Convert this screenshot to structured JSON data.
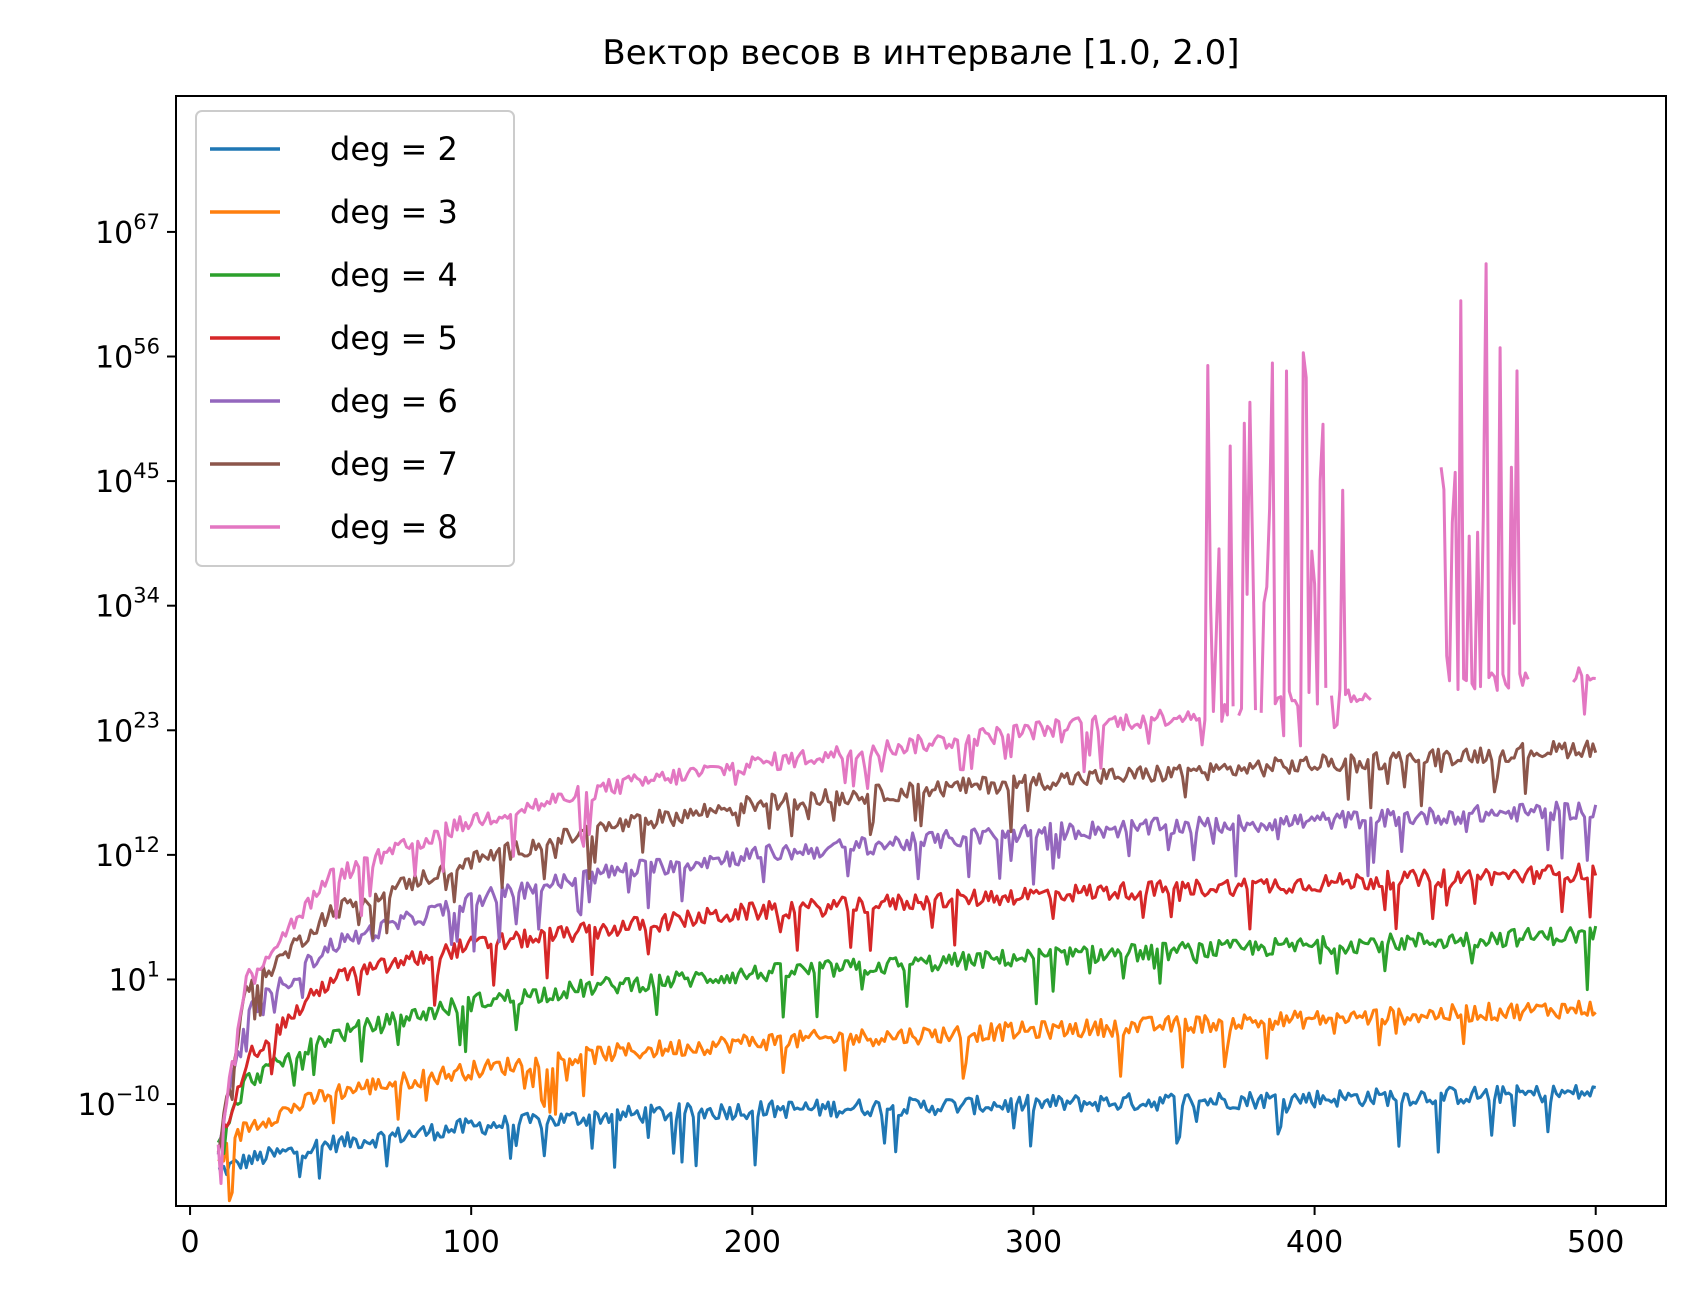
{
  "chart_data": {
    "type": "line",
    "title": "Вектор весов в интервале [1.0, 2.0]",
    "xlabel": "",
    "ylabel": "",
    "x_range": [
      10,
      500
    ],
    "xlim": [
      -5,
      525
    ],
    "ylim_log10": [
      -19,
      79
    ],
    "y_scale": "log",
    "x_ticks": [
      0,
      100,
      200,
      300,
      400,
      500
    ],
    "x_tick_labels": [
      "0",
      "100",
      "200",
      "300",
      "400",
      "500"
    ],
    "y_ticks": [
      {
        "exp": -10,
        "base": "10",
        "sup": "−10"
      },
      {
        "exp": 1,
        "base": "10",
        "sup": "1"
      },
      {
        "exp": 12,
        "base": "10",
        "sup": "12"
      },
      {
        "exp": 23,
        "base": "10",
        "sup": "23"
      },
      {
        "exp": 34,
        "base": "10",
        "sup": "34"
      },
      {
        "exp": 45,
        "base": "10",
        "sup": "45"
      },
      {
        "exp": 56,
        "base": "10",
        "sup": "56"
      },
      {
        "exp": 67,
        "base": "10",
        "sup": "67"
      }
    ],
    "legend_position": "upper left",
    "grid": false,
    "series": [
      {
        "name": "deg = 2",
        "color": "#1f77b4",
        "trend_log10": [
          [
            10,
            -16
          ],
          [
            20,
            -15
          ],
          [
            50,
            -13.5
          ],
          [
            100,
            -12
          ],
          [
            150,
            -11
          ],
          [
            200,
            -10.5
          ],
          [
            300,
            -10
          ],
          [
            400,
            -9.5
          ],
          [
            500,
            -9
          ]
        ]
      },
      {
        "name": "deg = 3",
        "color": "#ff7f0e",
        "trend_log10": [
          [
            10,
            -15
          ],
          [
            20,
            -12
          ],
          [
            50,
            -9
          ],
          [
            100,
            -7
          ],
          [
            150,
            -5.5
          ],
          [
            200,
            -4.5
          ],
          [
            300,
            -3.5
          ],
          [
            400,
            -2.5
          ],
          [
            500,
            -1.5
          ]
        ]
      },
      {
        "name": "deg = 4",
        "color": "#2ca02c",
        "trend_log10": [
          [
            10,
            -14
          ],
          [
            20,
            -8
          ],
          [
            50,
            -4
          ],
          [
            100,
            -1
          ],
          [
            150,
            0.5
          ],
          [
            200,
            1.5
          ],
          [
            300,
            3
          ],
          [
            400,
            4
          ],
          [
            500,
            5
          ]
        ]
      },
      {
        "name": "deg = 5",
        "color": "#d62728",
        "trend_log10": [
          [
            10,
            -14
          ],
          [
            20,
            -6
          ],
          [
            50,
            1
          ],
          [
            100,
            4
          ],
          [
            150,
            5.5
          ],
          [
            200,
            7
          ],
          [
            300,
            8.5
          ],
          [
            400,
            9.5
          ],
          [
            500,
            10.5
          ]
        ]
      },
      {
        "name": "deg = 6",
        "color": "#9467bd",
        "trend_log10": [
          [
            10,
            -14
          ],
          [
            20,
            -2
          ],
          [
            50,
            4
          ],
          [
            100,
            8
          ],
          [
            150,
            10.5
          ],
          [
            200,
            12
          ],
          [
            300,
            14
          ],
          [
            400,
            15
          ],
          [
            500,
            16
          ]
        ]
      },
      {
        "name": "deg = 7",
        "color": "#8c564b",
        "trend_log10": [
          [
            10,
            -14
          ],
          [
            20,
            0
          ],
          [
            50,
            7
          ],
          [
            100,
            11.5
          ],
          [
            150,
            14.5
          ],
          [
            200,
            16.5
          ],
          [
            300,
            18.5
          ],
          [
            400,
            20
          ],
          [
            500,
            21.5
          ]
        ]
      },
      {
        "name": "deg = 8",
        "color": "#e377c2",
        "trend_log10": [
          [
            10,
            -14
          ],
          [
            20,
            1
          ],
          [
            50,
            10
          ],
          [
            100,
            15
          ],
          [
            150,
            18
          ],
          [
            200,
            20
          ],
          [
            300,
            23
          ],
          [
            360,
            24.5
          ],
          [
            400,
            26
          ],
          [
            500,
            28
          ]
        ]
      }
    ],
    "annotations_visible": false
  }
}
